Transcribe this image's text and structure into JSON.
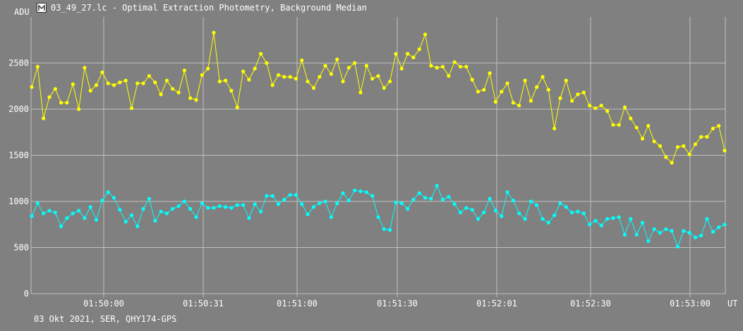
{
  "window": {
    "title": "03_49_27.lc - Optimal Extraction Photometry, Background Median",
    "footer": "03 Okt 2021, SER, QHY174-GPS"
  },
  "colors": {
    "background": "#808080",
    "grid": "#c0c0c0",
    "series_1": "#ffff00",
    "series_2": "#00ffff"
  },
  "chart_data": {
    "type": "line",
    "ylabel": "ADU",
    "xlabel": "UT",
    "ylim": [
      0,
      3000
    ],
    "y_ticks": [
      0,
      500,
      1000,
      1500,
      2000,
      2500
    ],
    "x_ticks": [
      "01:50:00",
      "01:50:31",
      "01:51:00",
      "01:51:30",
      "01:52:01",
      "01:52:30",
      "01:53:00"
    ],
    "grid": true,
    "series": [
      {
        "color": "#ffff00",
        "values": [
          2240,
          2460,
          1900,
          2130,
          2220,
          2070,
          2070,
          2270,
          2000,
          2450,
          2200,
          2260,
          2400,
          2280,
          2260,
          2290,
          2310,
          2010,
          2280,
          2280,
          2360,
          2290,
          2160,
          2310,
          2220,
          2180,
          2420,
          2120,
          2100,
          2370,
          2440,
          2830,
          2300,
          2310,
          2200,
          2020,
          2410,
          2320,
          2440,
          2600,
          2500,
          2260,
          2370,
          2350,
          2350,
          2330,
          2530,
          2300,
          2230,
          2350,
          2470,
          2380,
          2540,
          2300,
          2450,
          2500,
          2180,
          2470,
          2330,
          2360,
          2230,
          2300,
          2600,
          2440,
          2600,
          2560,
          2650,
          2810,
          2470,
          2450,
          2460,
          2360,
          2510,
          2460,
          2460,
          2320,
          2190,
          2210,
          2390,
          2080,
          2190,
          2280,
          2070,
          2040,
          2310,
          2090,
          2240,
          2350,
          2210,
          1790,
          2120,
          2310,
          2090,
          2160,
          2180,
          2040,
          2010,
          2040,
          1980,
          1830,
          1830,
          2020,
          1900,
          1800,
          1680,
          1820,
          1650,
          1600,
          1480,
          1420,
          1590,
          1600,
          1510,
          1620,
          1700,
          1700,
          1790,
          1820,
          1550
        ]
      },
      {
        "color": "#00ffff",
        "values": [
          840,
          980,
          870,
          900,
          880,
          730,
          820,
          870,
          900,
          820,
          940,
          800,
          1010,
          1100,
          1040,
          910,
          780,
          850,
          730,
          920,
          1030,
          790,
          890,
          870,
          920,
          950,
          1000,
          920,
          830,
          980,
          930,
          930,
          950,
          940,
          930,
          960,
          960,
          820,
          970,
          890,
          1060,
          1060,
          970,
          1020,
          1070,
          1070,
          970,
          860,
          940,
          980,
          1000,
          830,
          980,
          1090,
          1010,
          1120,
          1110,
          1100,
          1060,
          830,
          700,
          690,
          990,
          980,
          920,
          1020,
          1090,
          1040,
          1030,
          1170,
          1020,
          1050,
          970,
          880,
          930,
          910,
          810,
          880,
          1030,
          900,
          840,
          1100,
          1010,
          870,
          810,
          1000,
          960,
          810,
          770,
          850,
          980,
          940,
          880,
          890,
          870,
          750,
          790,
          740,
          810,
          820,
          830,
          640,
          810,
          640,
          770,
          570,
          700,
          660,
          700,
          680,
          510,
          680,
          660,
          610,
          630,
          810,
          670,
          720,
          750
        ]
      }
    ]
  }
}
